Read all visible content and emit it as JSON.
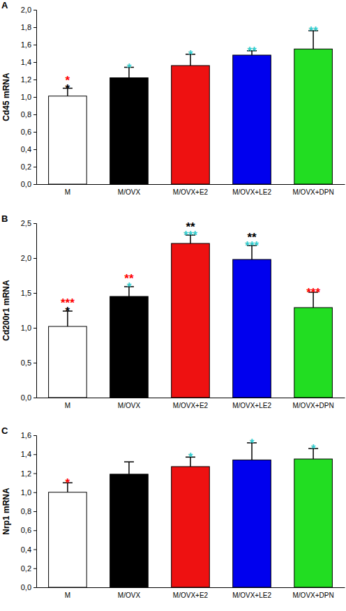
{
  "chart_data": [
    {
      "type": "bar",
      "panel": "A",
      "y_label": "Cd45 mRNA",
      "categories": [
        "M",
        "M/OVX",
        "M/OVX+E2",
        "M/OVX+LE2",
        "M/OVX+DPN"
      ],
      "values": [
        1.01,
        1.22,
        1.36,
        1.48,
        1.55
      ],
      "errors": [
        0.09,
        0.12,
        0.13,
        0.05,
        0.21
      ],
      "colors": [
        "#ffffff",
        "#000000",
        "#ee1111",
        "#0000ee",
        "#22dd22"
      ],
      "ylim": [
        0,
        2.0
      ],
      "yticks": [
        {
          "value": 0,
          "label": "0,0"
        },
        {
          "value": 0.2,
          "label": "0,2"
        },
        {
          "value": 0.4,
          "label": "0,4"
        },
        {
          "value": 0.6,
          "label": "0,6"
        },
        {
          "value": 0.8,
          "label": "0,8"
        },
        {
          "value": 1.0,
          "label": "1,0"
        },
        {
          "value": 1.2,
          "label": "1,2"
        },
        {
          "value": 1.4,
          "label": "1,4"
        },
        {
          "value": 1.6,
          "label": "1,6"
        },
        {
          "value": 1.8,
          "label": "1,8"
        },
        {
          "value": 2.0,
          "label": "2,0"
        }
      ],
      "annotations": [
        [
          {
            "text": "*",
            "color": "#ff0000"
          },
          {
            "text": "*",
            "color": "#000000"
          }
        ],
        [
          {
            "text": "*",
            "color": "#33cccc"
          }
        ],
        [
          {
            "text": "*",
            "color": "#33cccc"
          }
        ],
        [
          {
            "text": "**",
            "color": "#33cccc"
          }
        ],
        [
          {
            "text": "**",
            "color": "#33cccc"
          }
        ]
      ]
    },
    {
      "type": "bar",
      "panel": "B",
      "y_label": "Cd200r1 mRNA",
      "categories": [
        "M",
        "M/OVX",
        "M/OVX+E2",
        "M/OVX+LE2",
        "M/OVX+DPN"
      ],
      "values": [
        1.02,
        1.45,
        2.21,
        1.98,
        1.29
      ],
      "errors": [
        0.22,
        0.14,
        0.12,
        0.2,
        0.22
      ],
      "colors": [
        "#ffffff",
        "#000000",
        "#ee1111",
        "#0000ee",
        "#22dd22"
      ],
      "ylim": [
        0,
        2.5
      ],
      "yticks": [
        {
          "value": 0,
          "label": "0,0"
        },
        {
          "value": 0.5,
          "label": "0,5"
        },
        {
          "value": 1.0,
          "label": "1,0"
        },
        {
          "value": 1.5,
          "label": "1,5"
        },
        {
          "value": 2.0,
          "label": "2,0"
        },
        {
          "value": 2.5,
          "label": "2,5"
        }
      ],
      "annotations": [
        [
          {
            "text": "***",
            "color": "#ff0000"
          },
          {
            "text": "*",
            "color": "#000000"
          }
        ],
        [
          {
            "text": "**",
            "color": "#ff0000"
          },
          {
            "text": "*",
            "color": "#33cccc"
          }
        ],
        [
          {
            "text": "**",
            "color": "#000000"
          },
          {
            "text": "***",
            "color": "#33cccc"
          }
        ],
        [
          {
            "text": "**",
            "color": "#000000"
          },
          {
            "text": "***",
            "color": "#33cccc"
          }
        ],
        [
          {
            "text": "***",
            "color": "#ff0000"
          }
        ]
      ]
    },
    {
      "type": "bar",
      "panel": "C",
      "y_label": "Nrp1 mRNA",
      "categories": [
        "M",
        "M/OVX",
        "M/OVX+E2",
        "M/OVX+LE2",
        "M/OVX+DPN"
      ],
      "values": [
        1.0,
        1.19,
        1.27,
        1.34,
        1.35
      ],
      "errors": [
        0.1,
        0.13,
        0.1,
        0.18,
        0.11
      ],
      "colors": [
        "#ffffff",
        "#000000",
        "#ee1111",
        "#0000ee",
        "#22dd22"
      ],
      "ylim": [
        0,
        1.6
      ],
      "yticks": [
        {
          "value": 0,
          "label": "0,0"
        },
        {
          "value": 0.2,
          "label": "0,2"
        },
        {
          "value": 0.4,
          "label": "0,4"
        },
        {
          "value": 0.6,
          "label": "0,6"
        },
        {
          "value": 0.8,
          "label": "0,8"
        },
        {
          "value": 1.0,
          "label": "1,0"
        },
        {
          "value": 1.2,
          "label": "1,2"
        },
        {
          "value": 1.4,
          "label": "1,4"
        },
        {
          "value": 1.6,
          "label": "1,6"
        }
      ],
      "annotations": [
        [
          {
            "text": "*",
            "color": "#ff0000"
          }
        ],
        [],
        [
          {
            "text": "*",
            "color": "#33cccc"
          }
        ],
        [
          {
            "text": "*",
            "color": "#33cccc"
          }
        ],
        [
          {
            "text": "*",
            "color": "#33cccc"
          }
        ]
      ]
    }
  ]
}
